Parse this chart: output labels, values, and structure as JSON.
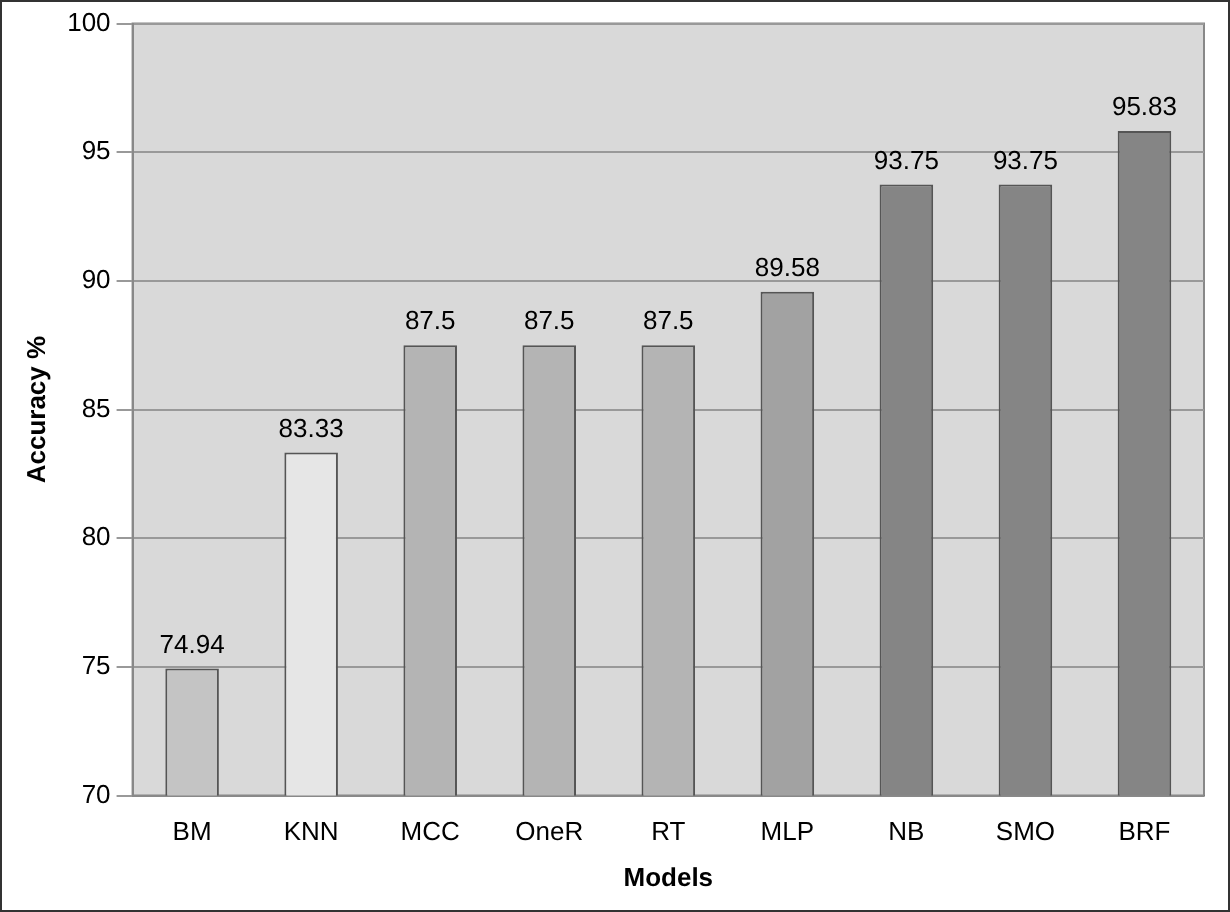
{
  "chart_data": {
    "type": "bar",
    "xlabel": "Models",
    "ylabel": "Accuracy %",
    "categories": [
      "BM",
      "KNN",
      "MCC",
      "OneR",
      "RT",
      "MLP",
      "NB",
      "SMO",
      "BRF"
    ],
    "values": [
      74.94,
      83.33,
      87.5,
      87.5,
      87.5,
      89.58,
      93.75,
      93.75,
      95.83
    ],
    "colors": [
      "#c4c4c4",
      "#e6e6e6",
      "#b4b4b4",
      "#b4b4b4",
      "#b4b4b4",
      "#a2a2a2",
      "#858585",
      "#858585",
      "#858585"
    ],
    "ylim": [
      70,
      100
    ],
    "yticks": [
      70,
      75,
      80,
      85,
      90,
      95,
      100
    ],
    "grid": "y",
    "legend": false,
    "data_labels": true
  }
}
